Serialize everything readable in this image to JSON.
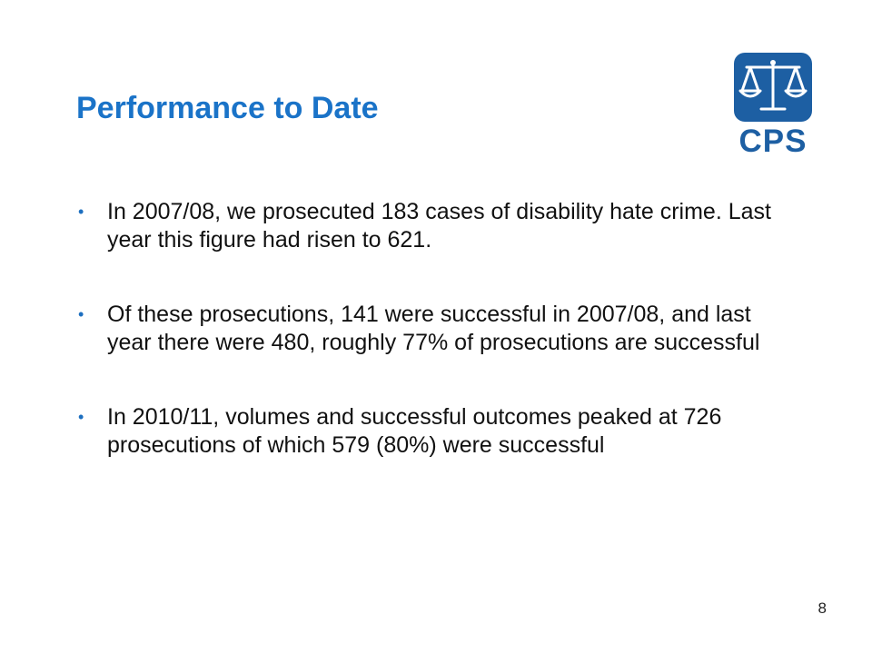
{
  "slide": {
    "title": "Performance to Date",
    "logo": {
      "text": "CPS",
      "icon": "scales-of-justice-icon",
      "color": "#1d5fa3"
    },
    "bullets": [
      {
        "marker": "•",
        "text": "In 2007/08, we prosecuted 183 cases of disability hate crime.  Last year this figure had risen to 621."
      },
      {
        "marker": "•",
        "text": "Of these prosecutions, 141 were successful in 2007/08, and last year there were 480, roughly 77% of prosecutions are successful"
      },
      {
        "marker": "•",
        "text": "In 2010/11, volumes and successful outcomes peaked at 726 prosecutions of which 579 (80%) were successful"
      }
    ],
    "page_number": "8",
    "colors": {
      "title": "#1a73c8",
      "bullet_marker": "#1d6fc0",
      "body_text": "#111111"
    }
  }
}
